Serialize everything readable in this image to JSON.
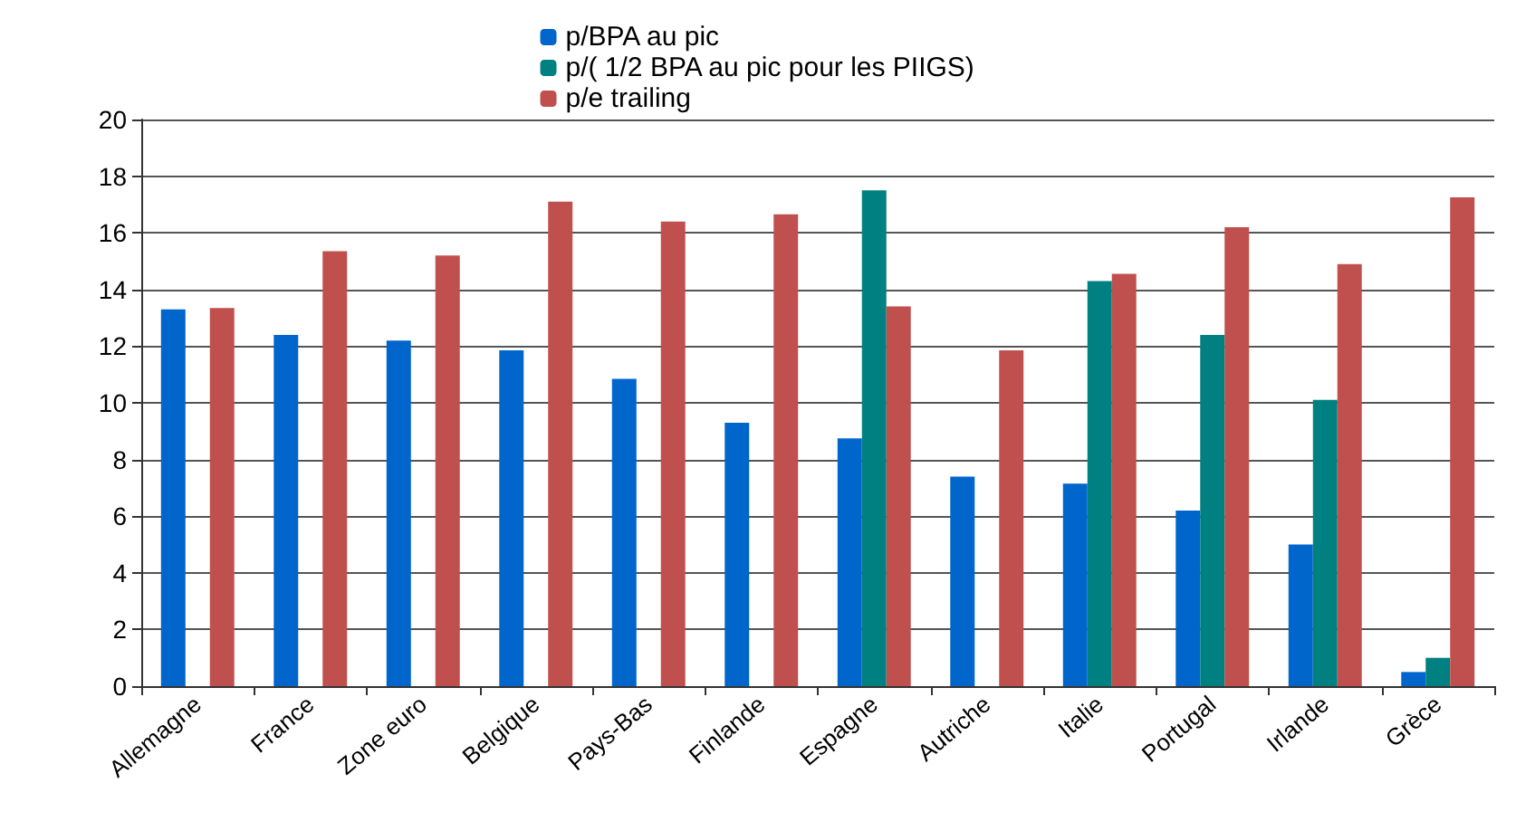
{
  "chart_data": {
    "type": "bar",
    "categories": [
      "Allemagne",
      "France",
      "Zone euro",
      "Belgique",
      "Pays-Bas",
      "Finlande",
      "Espagne",
      "Autriche",
      "Italie",
      "Portugal",
      "Irlande",
      "Grèce"
    ],
    "series": [
      {
        "name": "p/BPA au pic",
        "color": "#0066cc",
        "values": [
          13.3,
          12.4,
          12.2,
          11.85,
          10.85,
          9.3,
          8.75,
          7.4,
          7.15,
          6.2,
          5.0,
          0.5
        ]
      },
      {
        "name": "p/( 1/2 BPA au pic pour les PIIGS)",
        "color": "#008080",
        "values": [
          null,
          null,
          null,
          null,
          null,
          null,
          17.5,
          null,
          14.3,
          12.4,
          10.1,
          1.0
        ]
      },
      {
        "name": "p/e trailing",
        "color": "#c0504d",
        "values": [
          13.35,
          15.35,
          15.2,
          17.1,
          16.4,
          16.65,
          13.4,
          11.85,
          14.55,
          16.2,
          14.9,
          17.25
        ]
      }
    ],
    "ylim": [
      0,
      20
    ],
    "yticks": [
      0,
      2,
      4,
      6,
      8,
      10,
      12,
      14,
      16,
      18,
      20
    ],
    "grid": "y",
    "legend": "top"
  }
}
